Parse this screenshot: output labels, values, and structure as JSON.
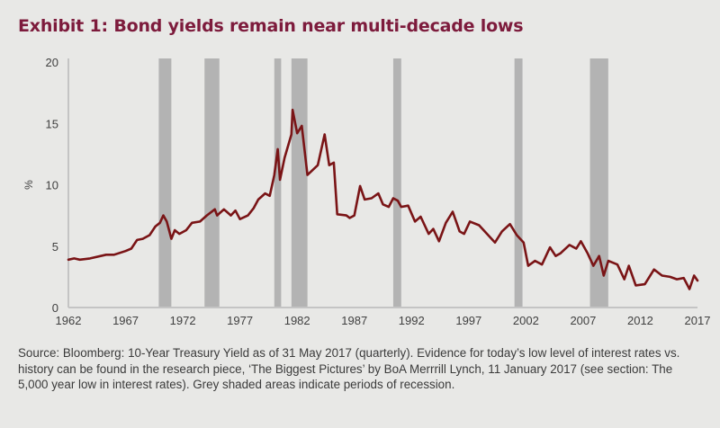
{
  "title": "Exhibit 1: Bond yields remain near multi-decade lows",
  "source_note": "Source: Bloomberg: 10-Year Treasury Yield as of 31 May 2017 (quarterly). Evidence for today’s low level of interest rates vs. history can be found in the research piece, ‘The Biggest Pictures’ by BoA Merrrill Lynch, 11 January 2017 (see section: The 5,000 year low in interest rates). Grey shaded areas indicate periods of recession.",
  "colors": {
    "line": "#7a1416",
    "recession": "#b3b3b3",
    "axis": "#c4c4c4",
    "title": "#7d1b3c"
  },
  "chart_data": {
    "type": "line",
    "title": "Exhibit 1: Bond yields remain near multi-decade lows",
    "xlabel": "",
    "ylabel": "%",
    "xlim": [
      1962,
      2017
    ],
    "ylim": [
      0,
      20
    ],
    "grid": false,
    "x_ticks": [
      "1962",
      "1967",
      "1972",
      "1977",
      "1982",
      "1987",
      "1992",
      "1997",
      "2002",
      "2007",
      "2012",
      "2017"
    ],
    "y_ticks": [
      "0",
      "5",
      "10",
      "15",
      "20"
    ],
    "series": [
      {
        "name": "10-Year Treasury Yield",
        "points": [
          [
            1962.0,
            3.9
          ],
          [
            1962.5,
            4.0
          ],
          [
            1963.0,
            3.9
          ],
          [
            1963.9,
            4.0
          ],
          [
            1965.3,
            4.3
          ],
          [
            1966.0,
            4.3
          ],
          [
            1967.0,
            4.6
          ],
          [
            1967.5,
            4.8
          ],
          [
            1968.0,
            5.5
          ],
          [
            1968.5,
            5.6
          ],
          [
            1969.1,
            5.9
          ],
          [
            1969.6,
            6.6
          ],
          [
            1970.0,
            6.9
          ],
          [
            1970.3,
            7.5
          ],
          [
            1970.6,
            7.0
          ],
          [
            1971.0,
            5.6
          ],
          [
            1971.3,
            6.3
          ],
          [
            1971.7,
            6.0
          ],
          [
            1972.3,
            6.3
          ],
          [
            1972.8,
            6.9
          ],
          [
            1973.5,
            7.0
          ],
          [
            1974.1,
            7.5
          ],
          [
            1974.8,
            8.0
          ],
          [
            1975.0,
            7.5
          ],
          [
            1975.6,
            8.0
          ],
          [
            1976.2,
            7.5
          ],
          [
            1976.6,
            7.9
          ],
          [
            1977.0,
            7.2
          ],
          [
            1977.7,
            7.5
          ],
          [
            1978.2,
            8.1
          ],
          [
            1978.6,
            8.8
          ],
          [
            1979.2,
            9.3
          ],
          [
            1979.6,
            9.1
          ],
          [
            1980.0,
            10.8
          ],
          [
            1980.3,
            12.9
          ],
          [
            1980.5,
            10.4
          ],
          [
            1980.9,
            12.2
          ],
          [
            1981.5,
            14.1
          ],
          [
            1981.6,
            16.1
          ],
          [
            1982.0,
            14.2
          ],
          [
            1982.4,
            14.8
          ],
          [
            1982.9,
            10.8
          ],
          [
            1983.8,
            11.6
          ],
          [
            1984.4,
            14.1
          ],
          [
            1984.8,
            11.6
          ],
          [
            1985.2,
            11.8
          ],
          [
            1985.5,
            7.6
          ],
          [
            1986.3,
            7.5
          ],
          [
            1986.6,
            7.3
          ],
          [
            1987.0,
            7.5
          ],
          [
            1987.5,
            9.9
          ],
          [
            1987.9,
            8.8
          ],
          [
            1988.5,
            8.9
          ],
          [
            1989.1,
            9.3
          ],
          [
            1989.5,
            8.4
          ],
          [
            1990.0,
            8.2
          ],
          [
            1990.4,
            8.9
          ],
          [
            1990.8,
            8.7
          ],
          [
            1991.1,
            8.2
          ],
          [
            1991.7,
            8.3
          ],
          [
            1992.3,
            7.0
          ],
          [
            1992.8,
            7.4
          ],
          [
            1993.5,
            6.0
          ],
          [
            1993.9,
            6.4
          ],
          [
            1994.4,
            5.4
          ],
          [
            1995.0,
            6.9
          ],
          [
            1995.6,
            7.8
          ],
          [
            1996.2,
            6.2
          ],
          [
            1996.6,
            6.0
          ],
          [
            1997.1,
            7.0
          ],
          [
            1997.9,
            6.7
          ],
          [
            1998.7,
            5.9
          ],
          [
            1999.3,
            5.3
          ],
          [
            1999.9,
            6.2
          ],
          [
            2000.6,
            6.8
          ],
          [
            2001.2,
            5.9
          ],
          [
            2001.8,
            5.3
          ],
          [
            2002.2,
            3.4
          ],
          [
            2002.8,
            3.8
          ],
          [
            2003.4,
            3.5
          ],
          [
            2004.1,
            4.9
          ],
          [
            2004.6,
            4.2
          ],
          [
            2005.0,
            4.4
          ],
          [
            2005.8,
            5.1
          ],
          [
            2006.4,
            4.8
          ],
          [
            2006.8,
            5.4
          ],
          [
            2007.4,
            4.4
          ],
          [
            2007.9,
            3.4
          ],
          [
            2008.4,
            4.2
          ],
          [
            2008.8,
            2.6
          ],
          [
            2009.2,
            3.8
          ],
          [
            2010.0,
            3.5
          ],
          [
            2010.6,
            2.3
          ],
          [
            2011.0,
            3.4
          ],
          [
            2011.6,
            1.8
          ],
          [
            2012.4,
            1.9
          ],
          [
            2013.2,
            3.1
          ],
          [
            2013.9,
            2.6
          ],
          [
            2014.6,
            2.5
          ],
          [
            2015.2,
            2.3
          ],
          [
            2015.8,
            2.4
          ],
          [
            2016.3,
            1.5
          ],
          [
            2016.7,
            2.6
          ],
          [
            2017.0,
            2.2
          ]
        ]
      }
    ],
    "recessions": [
      [
        1969.9,
        1971.0
      ],
      [
        1973.9,
        1975.2
      ],
      [
        1980.0,
        1980.6
      ],
      [
        1981.5,
        1982.9
      ],
      [
        1990.4,
        1991.1
      ],
      [
        2001.0,
        2001.7
      ],
      [
        2007.6,
        2009.2
      ]
    ],
    "legend": "none"
  }
}
